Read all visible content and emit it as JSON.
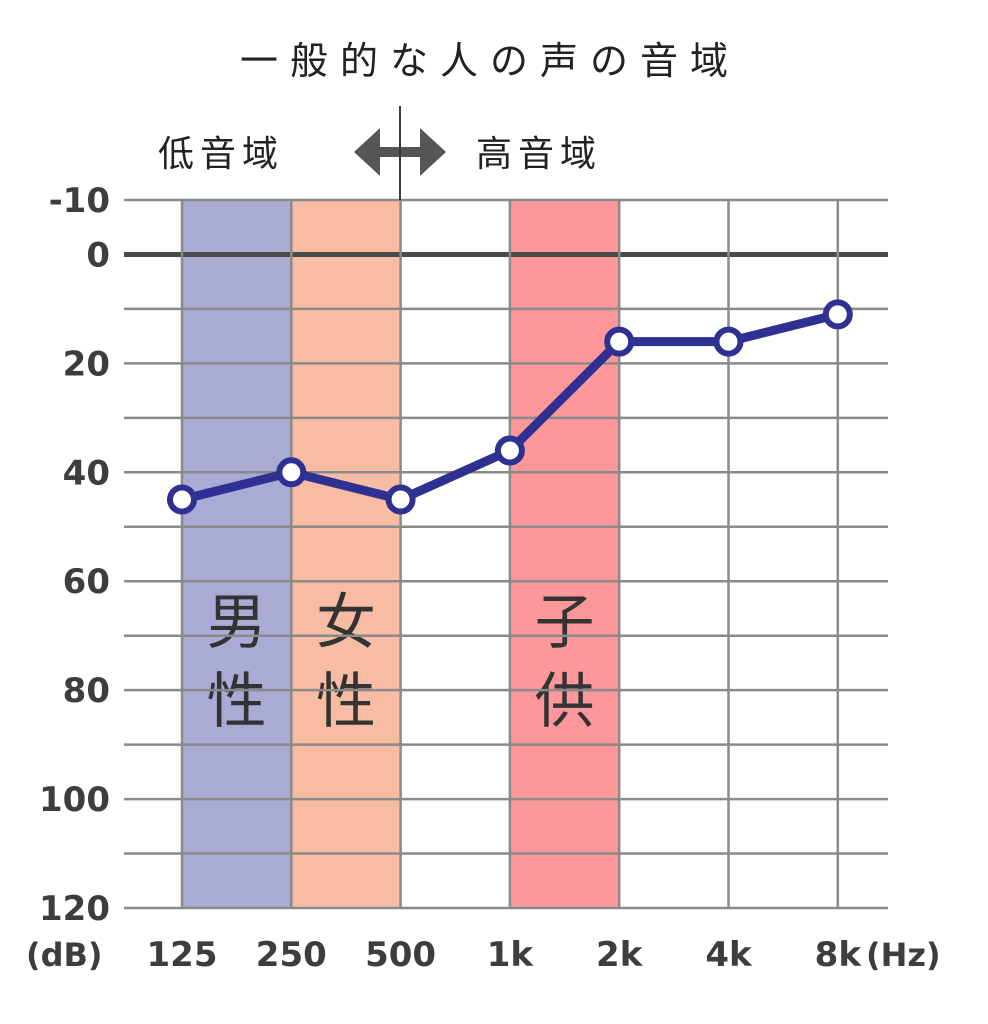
{
  "chart_data": {
    "type": "line",
    "title": "一般的な人の声の音域",
    "range_labels": {
      "low": "低音域",
      "high": "高音域"
    },
    "x": [
      "125",
      "250",
      "500",
      "1k",
      "2k",
      "4k",
      "8k"
    ],
    "xunit": "(Hz)",
    "yunit": "(dB)",
    "y_ticks": [
      "-10",
      "0",
      "20",
      "40",
      "60",
      "80",
      "100",
      "120"
    ],
    "ylim": [
      -10,
      120
    ],
    "y_inverted": true,
    "grid": true,
    "series": [
      {
        "values": [
          45,
          40,
          45,
          36,
          16,
          16,
          11
        ],
        "color": "#2e3192"
      }
    ],
    "bands": [
      {
        "label_line1": "男",
        "label_line2": "性",
        "from": "125",
        "to": "250",
        "color": "#a9abd4"
      },
      {
        "label_line1": "女",
        "label_line2": "性",
        "from": "250",
        "to": "500",
        "color": "#f7bca2"
      },
      {
        "label_line1": "子",
        "label_line2": "供",
        "from": "1k",
        "to": "2k",
        "color": "#fd9799"
      }
    ],
    "colors": {
      "grid": "#8a8a8a",
      "zero_line": "#4a4a4a",
      "divider": "#3a3a3a",
      "arrow": "#555555",
      "line": "#2e3192"
    }
  }
}
